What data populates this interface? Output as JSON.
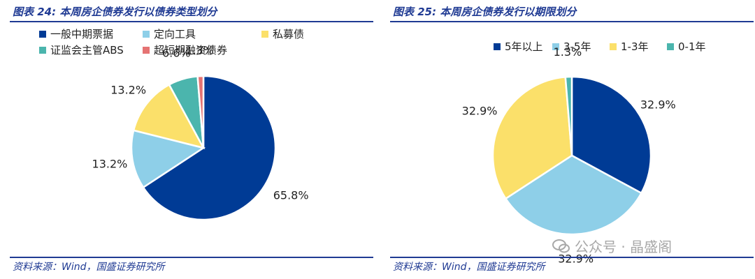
{
  "charts": [
    {
      "title": "图表 24: 本周房企债券发行以债券类型划分",
      "source": "资料来源：Wind，国盛证券研究所"
    },
    {
      "title": "图表 25: 本周房企债券发行以期限划分",
      "source": "资料来源：Wind，国盛证券研究所"
    }
  ],
  "chart_data": [
    {
      "type": "pie",
      "title": "图表 24: 本周房企债券发行以债券类型划分",
      "categories": [
        "一般中期票据",
        "定向工具",
        "私募债",
        "证监会主管ABS",
        "超短期融资债券"
      ],
      "values": [
        65.8,
        13.2,
        13.2,
        6.6,
        1.3
      ],
      "labels": [
        "65.8%",
        "13.2%",
        "13.2%",
        "6.6%",
        "1.3%"
      ],
      "colors": [
        "#003b95",
        "#8ecfe8",
        "#fbe06a",
        "#4bb5ad",
        "#e57373"
      ],
      "legend": "top"
    },
    {
      "type": "pie",
      "title": "图表 25: 本周房企债券发行以期限划分",
      "categories": [
        "5年以上",
        "3-5年",
        "1-3年",
        "0-1年"
      ],
      "values": [
        32.9,
        32.9,
        32.9,
        1.3
      ],
      "labels": [
        "32.9%",
        "32.9%",
        "32.9%",
        "1.3%"
      ],
      "colors": [
        "#003b95",
        "#8ecfe8",
        "#fbe06a",
        "#4bb5ad"
      ],
      "legend": "top"
    }
  ],
  "watermark": "公众号 · 晶盛阁"
}
